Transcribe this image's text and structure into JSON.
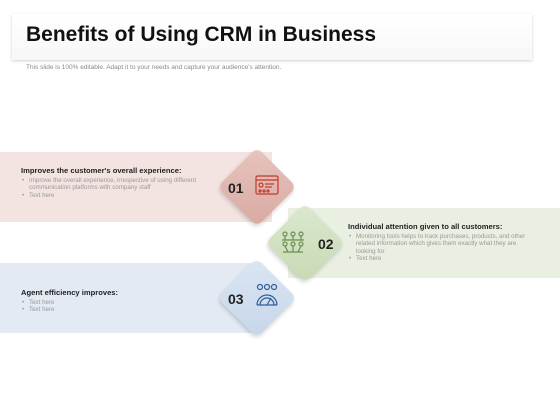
{
  "header": {
    "title": "Benefits of Using CRM in Business",
    "subtitle": "This slide is 100% editable. Adapt it to your needs and capture your audience's attention."
  },
  "items": [
    {
      "number": "01",
      "icon": "crm-dashboard-icon",
      "heading": "Improves the customer's overall experience:",
      "bullets": [
        "Improve the overall experience, irrespective of using different communication platforms with company staff",
        "Text here"
      ]
    },
    {
      "number": "02",
      "icon": "customer-network-icon",
      "heading": "Individual attention given to all customers:",
      "bullets": [
        "Monitoring tools helps to track purchases, products, and other related information which gives them exactly what they are looking for",
        "Text here"
      ]
    },
    {
      "number": "03",
      "icon": "agent-performance-gauge-icon",
      "heading": "Agent efficiency improves:",
      "bullets": [
        "Text here",
        "Text here"
      ]
    }
  ],
  "colors": {
    "band1": "#f4e4e1",
    "band2": "#e9f0e2",
    "band3": "#e3eaf3",
    "diamond1": "#dcb3ac",
    "diamond2": "#cfe0bf",
    "diamond3": "#cfdcec",
    "icon1": "#c0392b",
    "icon2": "#6b8e4e",
    "icon3": "#2f5f96"
  }
}
